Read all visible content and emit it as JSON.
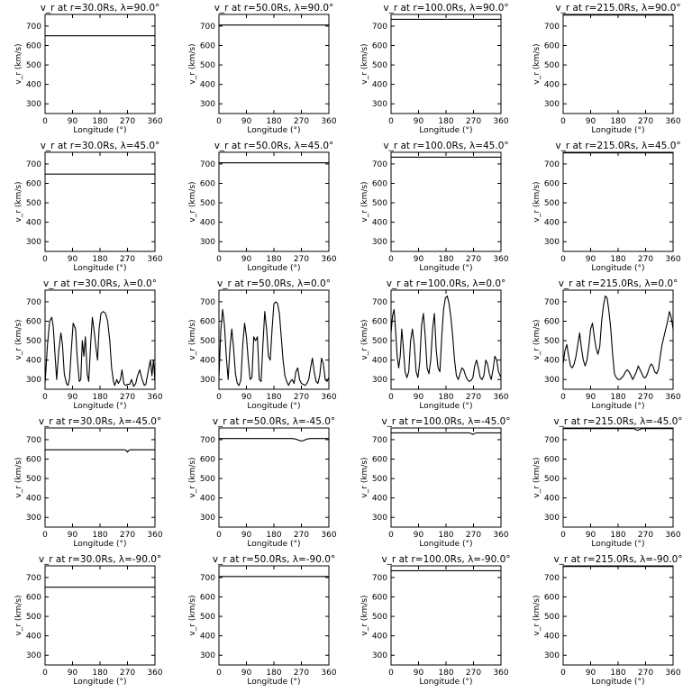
{
  "chart_data": [
    {
      "type": "line",
      "title": "v_r at r=30.0Rs, λ=90.0°",
      "xlabel": "Longitude (°)",
      "ylabel": "v_r (km/s)",
      "xlim": [
        0,
        360
      ],
      "ylim": [
        250,
        760
      ],
      "xticks": [
        0,
        90,
        180,
        270,
        360
      ],
      "yticks": [
        300,
        400,
        500,
        600,
        700
      ],
      "x": [
        0,
        360
      ],
      "y": [
        650,
        650
      ]
    },
    {
      "type": "line",
      "title": "v_r at r=50.0Rs, λ=90.0°",
      "xlabel": "Longitude (°)",
      "ylabel": "v_r (km/s)",
      "xlim": [
        0,
        360
      ],
      "ylim": [
        250,
        760
      ],
      "xticks": [
        0,
        90,
        180,
        270,
        360
      ],
      "yticks": [
        300,
        400,
        500,
        600,
        700
      ],
      "x": [
        0,
        360
      ],
      "y": [
        705,
        705
      ]
    },
    {
      "type": "line",
      "title": "v_r at r=100.0Rs, λ=90.0°",
      "xlabel": "Longitude (°)",
      "ylabel": "v_r (km/s)",
      "xlim": [
        0,
        360
      ],
      "ylim": [
        250,
        760
      ],
      "xticks": [
        0,
        90,
        180,
        270,
        360
      ],
      "yticks": [
        300,
        400,
        500,
        600,
        700
      ],
      "x": [
        0,
        360
      ],
      "y": [
        735,
        735
      ]
    },
    {
      "type": "line",
      "title": "v_r at r=215.0Rs, λ=90.0°",
      "xlabel": "Longitude (°)",
      "ylabel": "v_r (km/s)",
      "xlim": [
        0,
        360
      ],
      "ylim": [
        250,
        760
      ],
      "xticks": [
        0,
        90,
        180,
        270,
        360
      ],
      "yticks": [
        300,
        400,
        500,
        600,
        700
      ],
      "x": [
        0,
        360
      ],
      "y": [
        757,
        757
      ]
    },
    {
      "type": "line",
      "title": "v_r at r=30.0Rs, λ=45.0°",
      "xlabel": "Longitude (°)",
      "ylabel": "v_r (km/s)",
      "xlim": [
        0,
        360
      ],
      "ylim": [
        250,
        760
      ],
      "xticks": [
        0,
        90,
        180,
        270,
        360
      ],
      "yticks": [
        300,
        400,
        500,
        600,
        700
      ],
      "x": [
        0,
        360
      ],
      "y": [
        648,
        648
      ]
    },
    {
      "type": "line",
      "title": "v_r at r=50.0Rs, λ=45.0°",
      "xlabel": "Longitude (°)",
      "ylabel": "v_r (km/s)",
      "xlim": [
        0,
        360
      ],
      "ylim": [
        250,
        760
      ],
      "xticks": [
        0,
        90,
        180,
        270,
        360
      ],
      "yticks": [
        300,
        400,
        500,
        600,
        700
      ],
      "x": [
        0,
        360
      ],
      "y": [
        706,
        706
      ]
    },
    {
      "type": "line",
      "title": "v_r at r=100.0Rs, λ=45.0°",
      "xlabel": "Longitude (°)",
      "ylabel": "v_r (km/s)",
      "xlim": [
        0,
        360
      ],
      "ylim": [
        250,
        760
      ],
      "xticks": [
        0,
        90,
        180,
        270,
        360
      ],
      "yticks": [
        300,
        400,
        500,
        600,
        700
      ],
      "x": [
        0,
        360
      ],
      "y": [
        735,
        735
      ]
    },
    {
      "type": "line",
      "title": "v_r at r=215.0Rs, λ=45.0°",
      "xlabel": "Longitude (°)",
      "ylabel": "v_r (km/s)",
      "xlim": [
        0,
        360
      ],
      "ylim": [
        250,
        760
      ],
      "xticks": [
        0,
        90,
        180,
        270,
        360
      ],
      "yticks": [
        300,
        400,
        500,
        600,
        700
      ],
      "x": [
        0,
        360
      ],
      "y": [
        757,
        757
      ]
    },
    {
      "type": "line",
      "title": "v_r at r=30.0Rs, λ=0.0°",
      "xlabel": "Longitude (°)",
      "ylabel": "v_r (km/s)",
      "xlim": [
        0,
        360
      ],
      "ylim": [
        250,
        760
      ],
      "xticks": [
        0,
        90,
        180,
        270,
        360
      ],
      "yticks": [
        300,
        400,
        500,
        600,
        700
      ],
      "x": [
        0,
        8,
        15,
        22,
        27,
        33,
        38,
        45,
        52,
        57,
        63,
        70,
        75,
        80,
        86,
        92,
        100,
        105,
        112,
        117,
        122,
        127,
        132,
        138,
        143,
        150,
        155,
        160,
        167,
        172,
        177,
        183,
        190,
        198,
        205,
        212,
        218,
        224,
        228,
        235,
        240,
        247,
        252,
        258,
        263,
        270,
        277,
        283,
        287,
        290,
        297,
        303,
        310,
        318,
        325,
        330,
        340,
        345,
        350,
        355,
        360
      ],
      "y": [
        280,
        480,
        600,
        620,
        570,
        420,
        300,
        450,
        540,
        480,
        330,
        280,
        270,
        300,
        450,
        590,
        560,
        420,
        290,
        300,
        500,
        420,
        520,
        330,
        290,
        500,
        620,
        560,
        460,
        400,
        560,
        640,
        650,
        640,
        600,
        500,
        360,
        290,
        270,
        300,
        280,
        300,
        350,
        280,
        270,
        275,
        275,
        300,
        280,
        265,
        280,
        320,
        350,
        300,
        270,
        275,
        360,
        400,
        320,
        400,
        290
      ]
    },
    {
      "type": "line",
      "title": "v_r at r=50.0Rs, λ=0.0°",
      "xlabel": "Longitude (°)",
      "ylabel": "v_r (km/s)",
      "xlim": [
        0,
        360
      ],
      "ylim": [
        250,
        760
      ],
      "xticks": [
        0,
        90,
        180,
        270,
        360
      ],
      "yticks": [
        300,
        400,
        500,
        600,
        700
      ],
      "x": [
        0,
        6,
        12,
        18,
        24,
        30,
        36,
        42,
        48,
        54,
        60,
        66,
        72,
        78,
        84,
        90,
        96,
        102,
        108,
        114,
        120,
        126,
        132,
        138,
        144,
        150,
        156,
        162,
        168,
        174,
        180,
        186,
        192,
        198,
        204,
        210,
        216,
        222,
        228,
        234,
        240,
        246,
        252,
        258,
        264,
        270,
        276,
        282,
        288,
        294,
        300,
        306,
        312,
        318,
        324,
        330,
        336,
        342,
        348,
        354,
        360
      ],
      "y": [
        310,
        550,
        660,
        580,
        420,
        300,
        460,
        560,
        460,
        330,
        280,
        270,
        300,
        480,
        590,
        520,
        400,
        300,
        310,
        520,
        500,
        520,
        300,
        290,
        480,
        650,
        560,
        420,
        400,
        560,
        690,
        700,
        690,
        640,
        520,
        400,
        320,
        290,
        270,
        290,
        300,
        280,
        340,
        360,
        300,
        280,
        275,
        270,
        280,
        300,
        360,
        410,
        340,
        290,
        280,
        320,
        410,
        380,
        300,
        290,
        310
      ]
    },
    {
      "type": "line",
      "title": "v_r at r=100.0Rs, λ=0.0°",
      "xlabel": "Longitude (°)",
      "ylabel": "v_r (km/s)",
      "xlim": [
        0,
        360
      ],
      "ylim": [
        250,
        760
      ],
      "xticks": [
        0,
        90,
        180,
        270,
        360
      ],
      "yticks": [
        300,
        400,
        500,
        600,
        700
      ],
      "x": [
        0,
        5,
        10,
        15,
        20,
        25,
        30,
        35,
        40,
        46,
        52,
        58,
        64,
        70,
        76,
        82,
        88,
        94,
        100,
        106,
        112,
        118,
        124,
        130,
        136,
        142,
        148,
        154,
        160,
        166,
        172,
        178,
        184,
        190,
        196,
        202,
        208,
        214,
        220,
        226,
        232,
        238,
        244,
        250,
        256,
        262,
        268,
        274,
        280,
        286,
        292,
        298,
        304,
        310,
        316,
        322,
        328,
        334,
        340,
        346,
        352,
        360
      ],
      "y": [
        540,
        630,
        660,
        550,
        420,
        360,
        420,
        560,
        470,
        340,
        310,
        340,
        500,
        560,
        480,
        340,
        310,
        390,
        580,
        640,
        520,
        360,
        330,
        400,
        560,
        640,
        450,
        360,
        340,
        520,
        660,
        720,
        730,
        690,
        620,
        520,
        400,
        320,
        300,
        330,
        360,
        350,
        320,
        300,
        290,
        295,
        310,
        370,
        400,
        360,
        310,
        300,
        320,
        400,
        380,
        330,
        300,
        350,
        420,
        400,
        340,
        310
      ]
    },
    {
      "type": "line",
      "title": "v_r at r=215.0Rs, λ=0.0°",
      "xlabel": "Longitude (°)",
      "ylabel": "v_r (km/s)",
      "xlim": [
        0,
        360
      ],
      "ylim": [
        250,
        760
      ],
      "xticks": [
        0,
        90,
        180,
        270,
        360
      ],
      "yticks": [
        300,
        400,
        500,
        600,
        700
      ],
      "x": [
        0,
        6,
        12,
        18,
        24,
        30,
        36,
        42,
        48,
        54,
        60,
        66,
        72,
        78,
        84,
        90,
        96,
        102,
        108,
        114,
        120,
        126,
        132,
        138,
        144,
        150,
        156,
        162,
        168,
        174,
        180,
        186,
        192,
        198,
        204,
        210,
        216,
        222,
        228,
        234,
        240,
        246,
        252,
        258,
        264,
        270,
        276,
        282,
        288,
        294,
        300,
        306,
        312,
        318,
        324,
        330,
        336,
        342,
        348,
        354,
        360
      ],
      "y": [
        380,
        450,
        480,
        420,
        370,
        360,
        380,
        420,
        480,
        540,
        460,
        400,
        370,
        400,
        470,
        560,
        590,
        520,
        460,
        430,
        470,
        600,
        680,
        730,
        720,
        650,
        560,
        430,
        330,
        310,
        300,
        300,
        310,
        320,
        340,
        350,
        340,
        320,
        300,
        320,
        340,
        370,
        350,
        330,
        310,
        310,
        330,
        360,
        380,
        370,
        340,
        330,
        350,
        420,
        480,
        520,
        560,
        600,
        650,
        620,
        560
      ]
    },
    {
      "type": "line",
      "title": "v_r at r=30.0Rs, λ=-45.0°",
      "xlabel": "Longitude (°)",
      "ylabel": "v_r (km/s)",
      "xlim": [
        0,
        360
      ],
      "ylim": [
        250,
        760
      ],
      "xticks": [
        0,
        90,
        180,
        270,
        360
      ],
      "yticks": [
        300,
        400,
        500,
        600,
        700
      ],
      "x": [
        0,
        260,
        266,
        270,
        274,
        280,
        360
      ],
      "y": [
        648,
        648,
        645,
        636,
        645,
        648,
        648
      ]
    },
    {
      "type": "line",
      "title": "v_r at r=50.0Rs, λ=-45.0°",
      "xlabel": "Longitude (°)",
      "ylabel": "v_r (km/s)",
      "xlim": [
        0,
        360
      ],
      "ylim": [
        250,
        760
      ],
      "xticks": [
        0,
        90,
        180,
        270,
        360
      ],
      "yticks": [
        300,
        400,
        500,
        600,
        700
      ],
      "x": [
        0,
        240,
        252,
        262,
        270,
        278,
        288,
        300,
        360
      ],
      "y": [
        706,
        706,
        703,
        696,
        693,
        696,
        703,
        706,
        706
      ]
    },
    {
      "type": "line",
      "title": "v_r at r=100.0Rs, λ=-45.0°",
      "xlabel": "Longitude (°)",
      "ylabel": "v_r (km/s)",
      "xlim": [
        0,
        360
      ],
      "ylim": [
        250,
        760
      ],
      "xticks": [
        0,
        90,
        180,
        270,
        360
      ],
      "yticks": [
        300,
        400,
        500,
        600,
        700
      ],
      "x": [
        0,
        256,
        264,
        268,
        272,
        280,
        360
      ],
      "y": [
        735,
        735,
        731,
        727,
        731,
        735,
        735
      ]
    },
    {
      "type": "line",
      "title": "v_r at r=215.0Rs, λ=-45.0°",
      "xlabel": "Longitude (°)",
      "ylabel": "v_r (km/s)",
      "xlim": [
        0,
        360
      ],
      "ylim": [
        250,
        760
      ],
      "xticks": [
        0,
        90,
        180,
        270,
        360
      ],
      "yticks": [
        300,
        400,
        500,
        600,
        700
      ],
      "x": [
        0,
        230,
        238,
        244,
        250,
        258,
        360
      ],
      "y": [
        757,
        757,
        752,
        748,
        752,
        757,
        757
      ]
    },
    {
      "type": "line",
      "title": "v_r at r=30.0Rs, λ=-90.0°",
      "xlabel": "Longitude (°)",
      "ylabel": "v_r (km/s)",
      "xlim": [
        0,
        360
      ],
      "ylim": [
        250,
        760
      ],
      "xticks": [
        0,
        90,
        180,
        270,
        360
      ],
      "yticks": [
        300,
        400,
        500,
        600,
        700
      ],
      "x": [
        0,
        360
      ],
      "y": [
        650,
        650
      ]
    },
    {
      "type": "line",
      "title": "v_r at r=50.0Rs, λ=-90.0°",
      "xlabel": "Longitude (°)",
      "ylabel": "v_r (km/s)",
      "xlim": [
        0,
        360
      ],
      "ylim": [
        250,
        760
      ],
      "xticks": [
        0,
        90,
        180,
        270,
        360
      ],
      "yticks": [
        300,
        400,
        500,
        600,
        700
      ],
      "x": [
        0,
        360
      ],
      "y": [
        705,
        705
      ]
    },
    {
      "type": "line",
      "title": "v_r at r=100.0Rs, λ=-90.0°",
      "xlabel": "Longitude (°)",
      "ylabel": "v_r (km/s)",
      "xlim": [
        0,
        360
      ],
      "ylim": [
        250,
        760
      ],
      "xticks": [
        0,
        90,
        180,
        270,
        360
      ],
      "yticks": [
        300,
        400,
        500,
        600,
        700
      ],
      "x": [
        0,
        360
      ],
      "y": [
        735,
        735
      ]
    },
    {
      "type": "line",
      "title": "v_r at r=215.0Rs, λ=-90.0°",
      "xlabel": "Longitude (°)",
      "ylabel": "v_r (km/s)",
      "xlim": [
        0,
        360
      ],
      "ylim": [
        250,
        760
      ],
      "xticks": [
        0,
        90,
        180,
        270,
        360
      ],
      "yticks": [
        300,
        400,
        500,
        600,
        700
      ],
      "x": [
        0,
        360
      ],
      "y": [
        757,
        757
      ]
    }
  ]
}
